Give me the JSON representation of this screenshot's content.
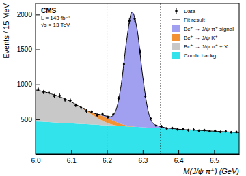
{
  "chart_data": {
    "type": "stacked_area",
    "stacked": true,
    "x_label": "M(J/ψ π⁺) (GeV)",
    "y_label": "Events / 15 MeV",
    "annotations": [
      "CMS",
      "L = 143 fb⁻¹",
      "√s = 13 TeV"
    ],
    "xlim": [
      6.0,
      6.57
    ],
    "ylim": [
      0,
      2160
    ],
    "xticks": [
      {
        "value": 6.0,
        "label": "6.0"
      },
      {
        "value": 6.1,
        "label": "6.1"
      },
      {
        "value": 6.2,
        "label": "6.2"
      },
      {
        "value": 6.3,
        "label": "6.3"
      },
      {
        "value": 6.4,
        "label": "6.4"
      },
      {
        "value": 6.5,
        "label": "6.5"
      }
    ],
    "yticks": [
      500,
      1000,
      1500,
      2000
    ],
    "vlines": [
      6.2,
      6.35
    ],
    "legend": "upper right",
    "x": [
      6.0,
      6.015,
      6.03,
      6.045,
      6.06,
      6.075,
      6.09,
      6.105,
      6.12,
      6.135,
      6.15,
      6.165,
      6.18,
      6.195,
      6.21,
      6.225,
      6.24,
      6.255,
      6.27,
      6.285,
      6.3,
      6.315,
      6.33,
      6.345,
      6.36,
      6.375,
      6.39,
      6.405,
      6.42,
      6.435,
      6.45,
      6.465,
      6.48,
      6.495,
      6.51,
      6.525,
      6.54,
      6.555,
      6.57
    ],
    "series": [
      {
        "name": "Comb. backg.",
        "type": "area",
        "color": "#33e3ec",
        "values": [
          470,
          466,
          462,
          457,
          453,
          449,
          445,
          441,
          436,
          432,
          428,
          424,
          419,
          415,
          411,
          407,
          403,
          398,
          394,
          390,
          386,
          382,
          377,
          373,
          369,
          365,
          361,
          356,
          352,
          348,
          344,
          340,
          335,
          331,
          327,
          323,
          319,
          314,
          310
        ]
      },
      {
        "name": "Bc⁺ → J/ψ π⁺ + X",
        "type": "area",
        "color": "#c8c8c8",
        "values": [
          450,
          440,
          425,
          405,
          385,
          360,
          330,
          295,
          255,
          210,
          165,
          120,
          80,
          45,
          20,
          5,
          0,
          0,
          0,
          0,
          0,
          0,
          0,
          0,
          0,
          0,
          0,
          0,
          0,
          0,
          0,
          0,
          0,
          0,
          0,
          0,
          0,
          0,
          0
        ]
      },
      {
        "name": "Bc⁺ → J/ψ K⁺",
        "type": "area",
        "color": "#f39232",
        "values": [
          0,
          0,
          0,
          0,
          0,
          0,
          0,
          0,
          2,
          8,
          20,
          40,
          60,
          70,
          65,
          50,
          30,
          15,
          5,
          0,
          0,
          0,
          0,
          0,
          0,
          0,
          0,
          0,
          0,
          0,
          0,
          0,
          0,
          0,
          0,
          0,
          0,
          0,
          0
        ]
      },
      {
        "name": "Bc⁺ → J/ψ π⁺ signal",
        "type": "area",
        "color": "#a09ff0",
        "values": [
          0,
          0,
          0,
          0,
          0,
          0,
          0,
          0,
          0,
          0,
          0,
          0,
          10,
          20,
          40,
          168,
          569,
          1217,
          1637,
          1377,
          730,
          243,
          60,
          30,
          15,
          8,
          4,
          0,
          0,
          0,
          0,
          0,
          0,
          0,
          0,
          0,
          0,
          0,
          0
        ]
      },
      {
        "name": "Fit result",
        "type": "line",
        "color": "#000000",
        "values": [
          920,
          906,
          887,
          862,
          838,
          809,
          775,
          736,
          693,
          650,
          613,
          584,
          569,
          550,
          536,
          630,
          1002,
          1630,
          2036,
          1767,
          1116,
          625,
          437,
          403,
          384,
          373,
          365,
          356,
          352,
          348,
          344,
          340,
          335,
          331,
          327,
          323,
          319,
          314,
          310
        ]
      },
      {
        "name": "Data",
        "type": "scatter",
        "color": "#000000",
        "marker": "circle",
        "x": [
          6.0075,
          6.0225,
          6.0375,
          6.0525,
          6.0675,
          6.0825,
          6.0975,
          6.1125,
          6.1275,
          6.1425,
          6.1575,
          6.1725,
          6.1875,
          6.2025,
          6.2175,
          6.2325,
          6.2475,
          6.2625,
          6.2775,
          6.2925,
          6.3075,
          6.3225,
          6.3375,
          6.3525,
          6.3675,
          6.3825,
          6.3975,
          6.4125,
          6.4275,
          6.4425,
          6.4575,
          6.4725,
          6.4875,
          6.5025,
          6.5175,
          6.5325,
          6.5475,
          6.5625
        ],
        "values": [
          930,
          890,
          880,
          835,
          840,
          780,
          770,
          700,
          665,
          620,
          610,
          560,
          575,
          530,
          570,
          800,
          1290,
          1910,
          1940,
          1470,
          830,
          510,
          410,
          400,
          370,
          375,
          355,
          360,
          345,
          352,
          338,
          345,
          330,
          336,
          320,
          328,
          315,
          318
        ],
        "errors": [
          30,
          30,
          30,
          29,
          29,
          28,
          28,
          26,
          26,
          25,
          25,
          24,
          24,
          23,
          24,
          28,
          36,
          44,
          44,
          38,
          29,
          23,
          20,
          20,
          19,
          19,
          19,
          19,
          19,
          19,
          18,
          19,
          18,
          18,
          18,
          18,
          18,
          18
        ]
      }
    ]
  }
}
